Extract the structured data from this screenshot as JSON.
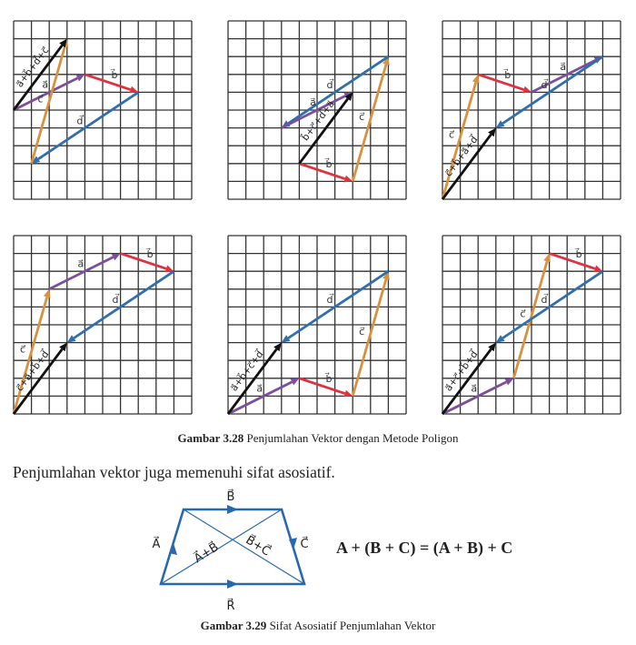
{
  "colors": {
    "a": "#7b4f9a",
    "b": "#e0313f",
    "c": "#d8913f",
    "d": "#2f6fad",
    "sum": "#111111",
    "grid": "#333333",
    "assoc": "#2a68ad"
  },
  "figure_3_28": {
    "grid_cells": 10,
    "panels": [
      {
        "start": [
          0,
          5
        ],
        "order": [
          "a",
          "b",
          "d",
          "c"
        ],
        "sum_label": "a⃗+b⃗+d⃗+c⃗"
      },
      {
        "start": [
          4,
          8
        ],
        "order": [
          "b",
          "c",
          "d",
          "a"
        ],
        "sum_label": "b⃗+c⃗+d⃗+a⃗"
      },
      {
        "start": [
          0,
          10
        ],
        "order": [
          "c",
          "b",
          "a",
          "d"
        ],
        "sum_label": "c⃗+b⃗+a⃗+d⃗"
      },
      {
        "start": [
          0,
          10
        ],
        "order": [
          "c",
          "a",
          "b",
          "d"
        ],
        "sum_label": "c⃗+a⃗+b⃗+d⃗"
      },
      {
        "start": [
          0,
          10
        ],
        "order": [
          "a",
          "b",
          "c",
          "d"
        ],
        "sum_label": "a⃗+b⃗+c⃗+d⃗"
      },
      {
        "start": [
          0,
          10
        ],
        "order": [
          "a",
          "c",
          "b",
          "d"
        ],
        "sum_label": "a⃗+c⃗+b⃗+d⃗"
      }
    ],
    "vectors": {
      "a": {
        "dx": 4,
        "dy": 2,
        "label": "a⃗"
      },
      "b": {
        "dx": 3,
        "dy": -1,
        "label": "b⃗"
      },
      "c": {
        "dx": 2,
        "dy": 7,
        "label": "c⃗"
      },
      "d": {
        "dx": -6,
        "dy": -4,
        "label": "d⃗"
      }
    },
    "caption_number": "Gambar 3.28",
    "caption_text": " Penjumlahan Vektor dengan Metode Poligon"
  },
  "paragraph": "Penjumlahan vektor juga memenuhi sifat asosiatif.",
  "figure_3_29": {
    "labels": {
      "A": "A⃗",
      "B": "B⃗",
      "C": "C⃗",
      "R": "R⃗",
      "AB": "A⃗+B⃗",
      "BC": "B⃗+C⃗"
    },
    "equation": "A + (B + C) = (A + B) + C",
    "caption_number": "Gambar 3.29",
    "caption_text": "  Sifat Asosiatif Penjumlahan Vektor"
  }
}
